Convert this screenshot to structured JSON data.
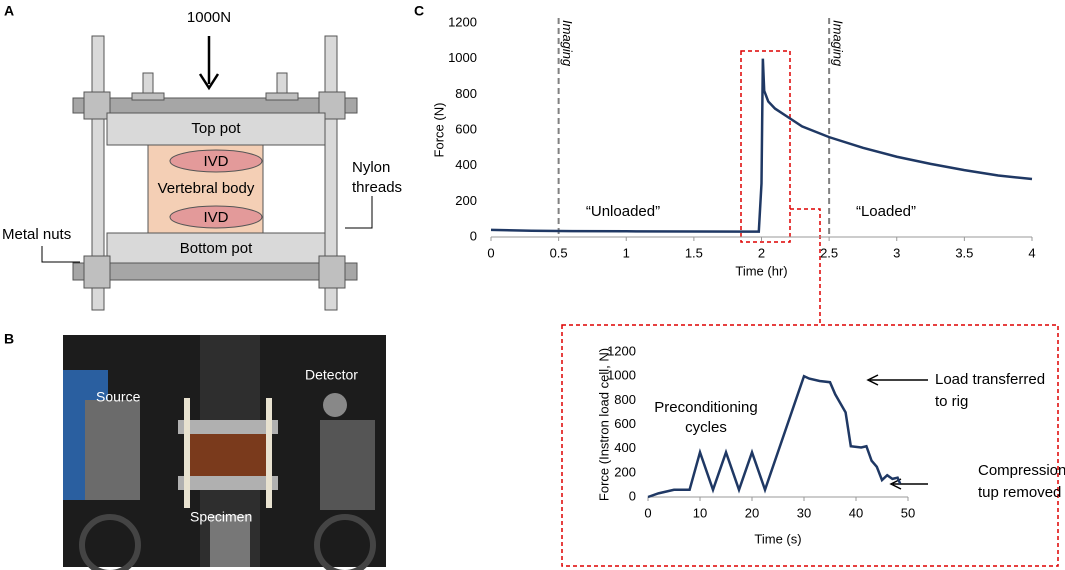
{
  "panels": {
    "a": "A",
    "b": "B",
    "c": "C"
  },
  "diagram": {
    "load": "1000N",
    "top_pot": "Top pot",
    "ivd_top": "IVD",
    "body": "Vertebral body",
    "ivd_bottom": "IVD",
    "bottom_pot": "Bottom pot",
    "nylon": [
      "Nylon",
      "threads"
    ],
    "nuts": "Metal nuts"
  },
  "photo": {
    "source": "Source",
    "detector": "Detector",
    "specimen": "Specimen"
  },
  "chart_data": [
    {
      "type": "line",
      "xlabel": "Time (hr)",
      "ylabel": "Force (N)",
      "color": "#1f3864",
      "x": [
        0,
        0.3,
        0.6,
        1,
        1.5,
        1.9,
        1.98,
        2.0,
        2.01,
        2.02,
        2.05,
        2.1,
        2.2,
        2.3,
        2.5,
        2.75,
        3,
        3.25,
        3.5,
        3.75,
        4
      ],
      "values": [
        40,
        35,
        33,
        32,
        31,
        30,
        30,
        300,
        1000,
        820,
        760,
        720,
        670,
        620,
        560,
        500,
        450,
        410,
        375,
        345,
        325
      ],
      "xlim": [
        0,
        4
      ],
      "xticks": [
        0,
        0.5,
        1,
        1.5,
        2,
        2.5,
        3,
        3.5,
        4
      ],
      "ylim": [
        0,
        1200
      ],
      "yticks": [
        0,
        200,
        400,
        600,
        800,
        1000,
        1200
      ],
      "vlines": [
        {
          "x": 0.5,
          "label": "Imaging"
        },
        {
          "x": 2.5,
          "label": "Imaging"
        }
      ],
      "annotations": [
        "“Unloaded”",
        "“Loaded”"
      ]
    },
    {
      "type": "line",
      "xlabel": "Time (s)",
      "ylabel": "Force (Instron load cell, N)",
      "color": "#1f3864",
      "x": [
        0,
        2,
        5,
        8,
        10,
        12.5,
        15,
        17.5,
        20,
        22.5,
        30,
        31,
        33,
        35,
        36,
        38,
        39,
        41,
        42,
        43,
        44,
        45,
        46,
        47,
        48,
        48.5
      ],
      "values": [
        0,
        30,
        60,
        60,
        370,
        60,
        370,
        60,
        370,
        60,
        1000,
        980,
        960,
        950,
        850,
        700,
        420,
        410,
        420,
        300,
        250,
        140,
        180,
        150,
        160,
        110
      ],
      "xlim": [
        0,
        50
      ],
      "xticks": [
        0,
        10,
        20,
        30,
        40,
        50
      ],
      "ylim": [
        0,
        1200
      ],
      "yticks": [
        0,
        200,
        400,
        600,
        800,
        1000,
        1200
      ],
      "annotations": [
        [
          "Preconditioning",
          "cycles"
        ],
        [
          "Load transferred",
          "to rig"
        ],
        [
          "Compression",
          "tup removed"
        ]
      ]
    }
  ]
}
